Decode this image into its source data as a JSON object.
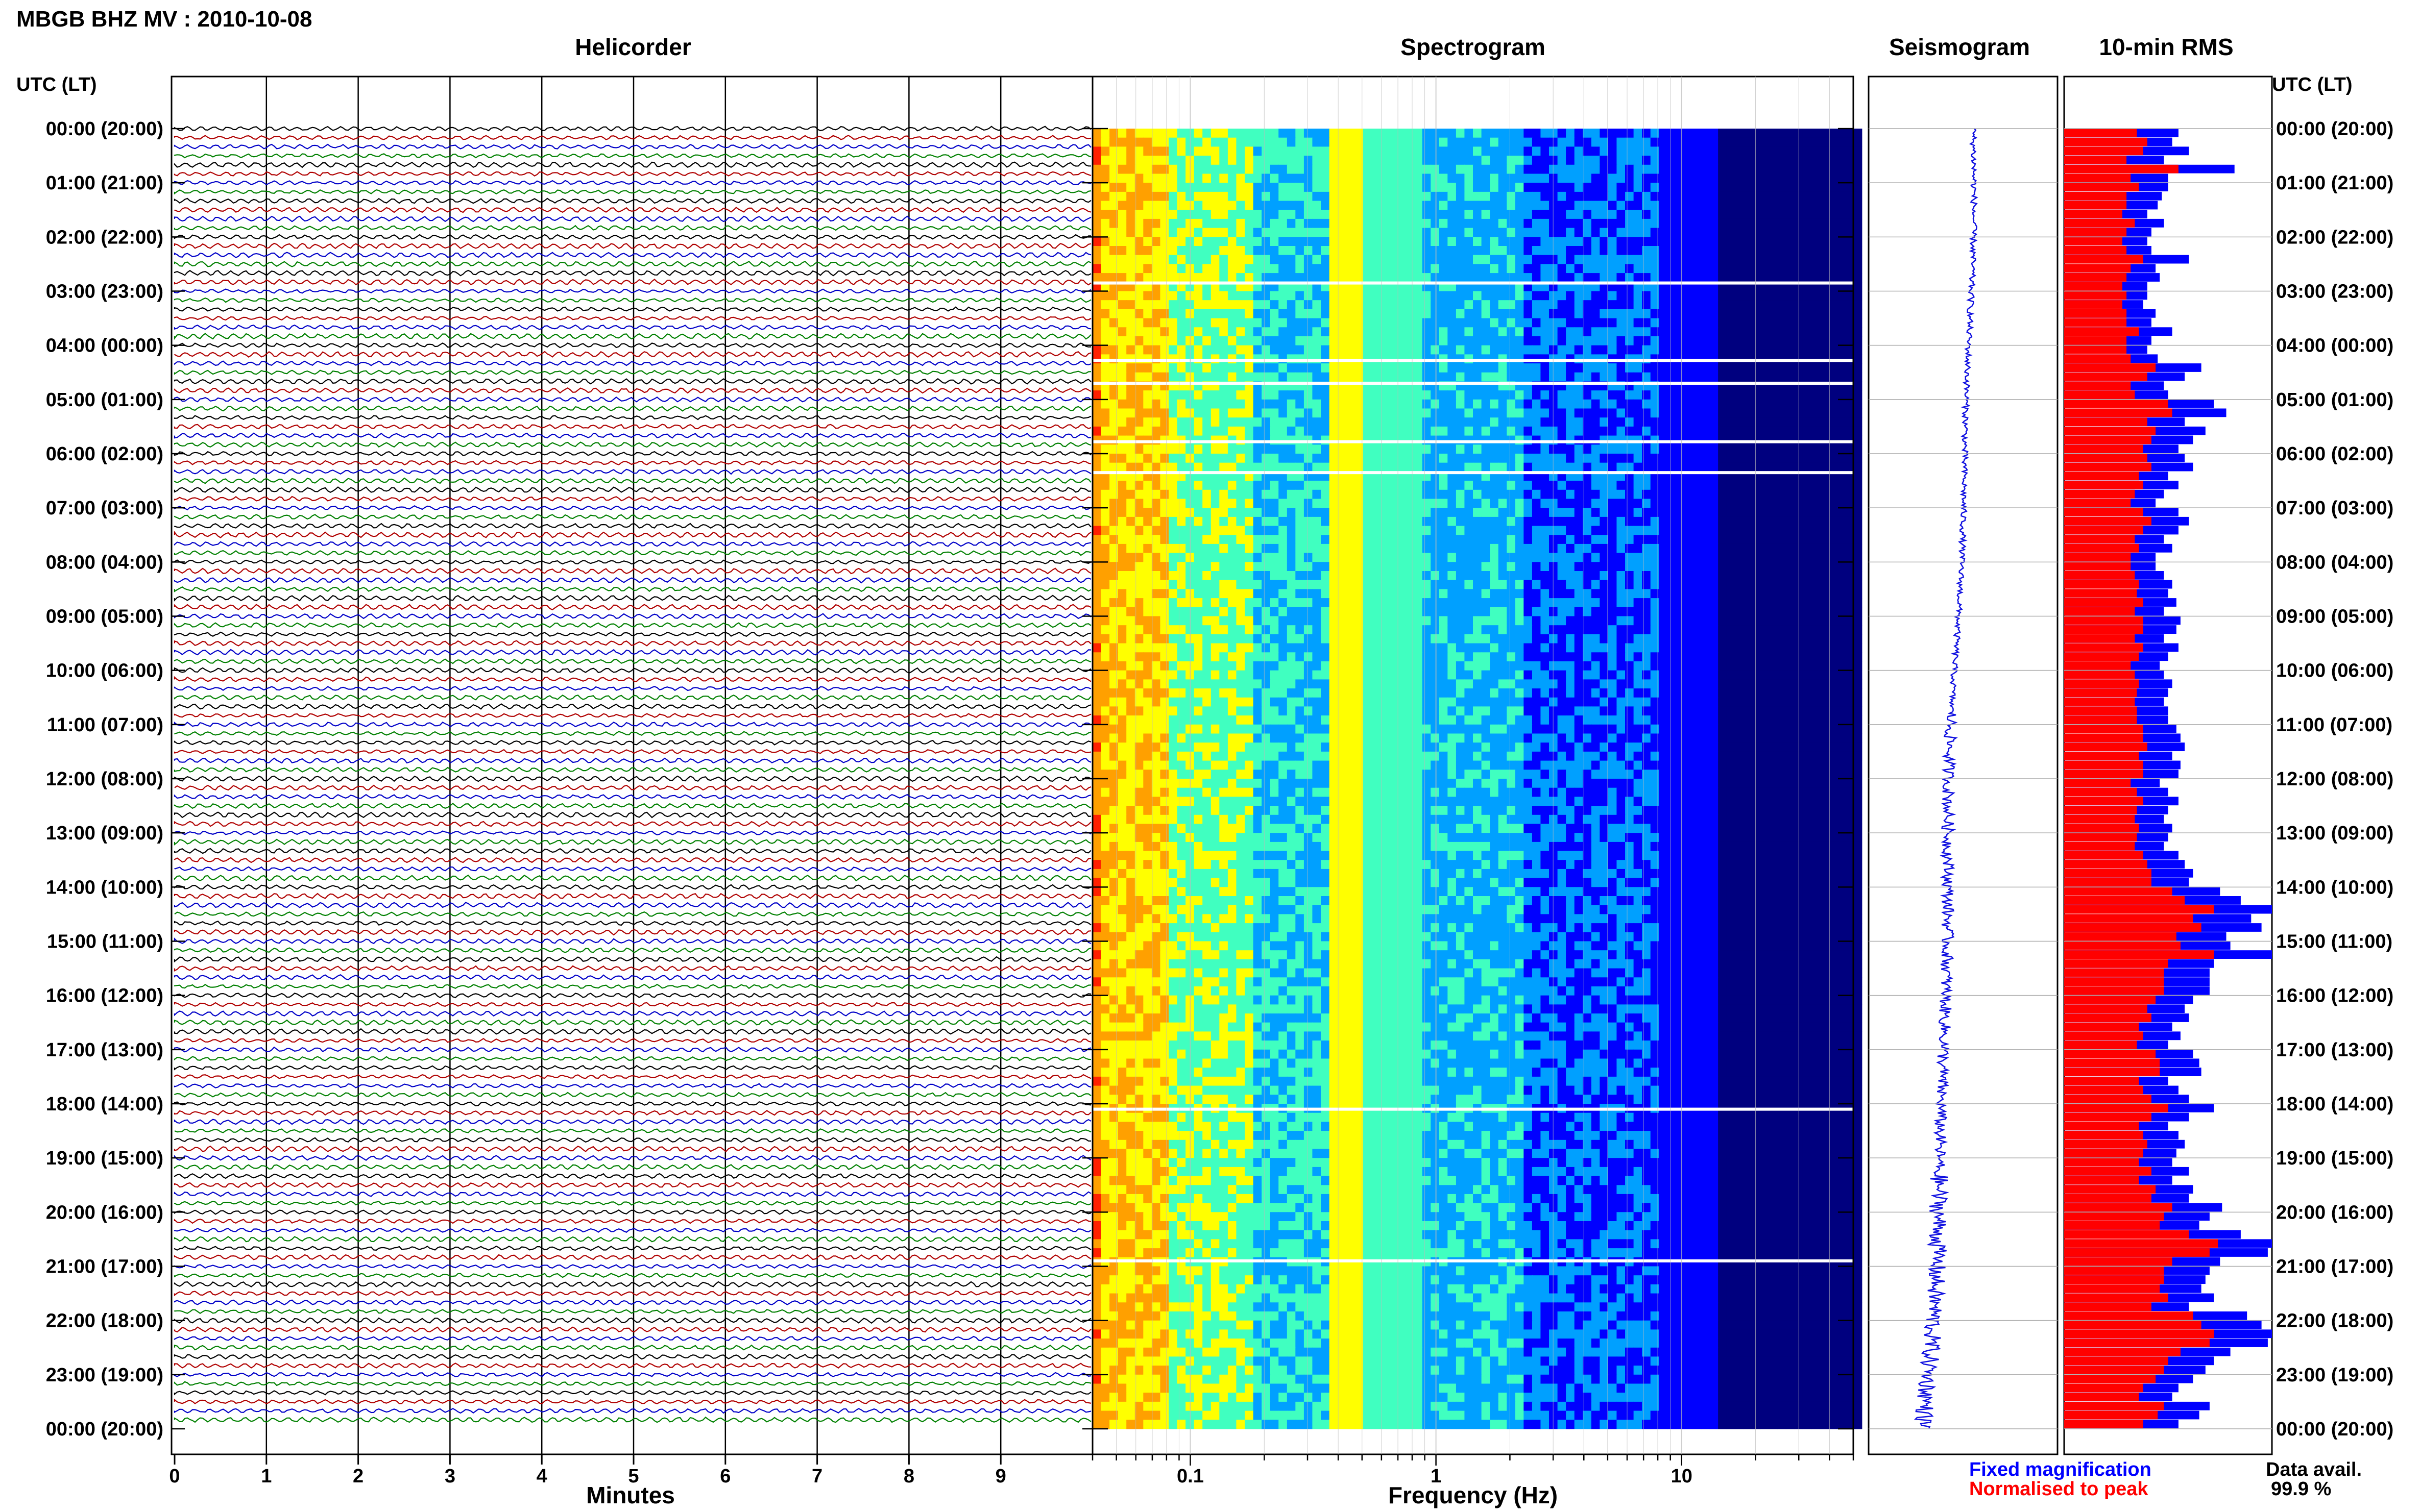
{
  "header": {
    "title": "MBGB BHZ MV : 2010-10-08",
    "utc_label_left": "UTC (LT)",
    "utc_label_right": "UTC (LT)"
  },
  "panels": {
    "helicorder": "Helicorder",
    "spectrogram": "Spectrogram",
    "seismogram": "Seismogram",
    "rms": "10-min RMS"
  },
  "time_labels": [
    "00:00 (20:00)",
    "01:00 (21:00)",
    "02:00 (22:00)",
    "03:00 (23:00)",
    "04:00 (00:00)",
    "05:00 (01:00)",
    "06:00 (02:00)",
    "07:00 (03:00)",
    "08:00 (04:00)",
    "09:00 (05:00)",
    "10:00 (06:00)",
    "11:00 (07:00)",
    "12:00 (08:00)",
    "13:00 (09:00)",
    "14:00 (10:00)",
    "15:00 (11:00)",
    "16:00 (12:00)",
    "17:00 (13:00)",
    "18:00 (14:00)",
    "19:00 (15:00)",
    "20:00 (16:00)",
    "21:00 (17:00)",
    "22:00 (18:00)",
    "23:00 (19:00)",
    "00:00 (20:00)"
  ],
  "footer": {
    "minutes_label": "Minutes",
    "frequency_label": "Frequency (Hz)",
    "legend_fixed": "Fixed magnification",
    "legend_normalised": "Normalised to peak",
    "data_avail_label": "Data avail.",
    "data_avail_value": "99.9 %"
  },
  "colors": {
    "trace_black": "#000000",
    "trace_red": "#b00000",
    "trace_blue": "#0000c8",
    "trace_green": "#008000",
    "rms_fixed": "#0000ff",
    "rms_normalised": "#ff0000",
    "seismo_trace": "#1010e0"
  },
  "chart_data": [
    {
      "type": "line",
      "panel": "helicorder",
      "xlabel": "Minutes",
      "x_ticks": [
        "0",
        "1",
        "2",
        "3",
        "4",
        "5",
        "6",
        "7",
        "8",
        "9"
      ],
      "xlim": [
        0,
        10
      ],
      "rows": 144,
      "row_interval_minutes": 10,
      "trace_color_cycle": [
        "#000000",
        "#b00000",
        "#0000c8",
        "#008000"
      ]
    },
    {
      "type": "heatmap",
      "panel": "spectrogram",
      "xlabel": "Frequency (Hz)",
      "x_scale": "log",
      "x_ticks": [
        "0.1",
        "1",
        "10"
      ],
      "xlim": [
        0.04,
        50
      ],
      "colormap": [
        "#00007f",
        "#0000ff",
        "#00a0ff",
        "#40ffc0",
        "#ffff00",
        "#ffa000",
        "#ff2000"
      ],
      "gap_rows_utc_hours": [
        2.85,
        4.28,
        4.7,
        5.78,
        6.35,
        18.1,
        20.9
      ]
    },
    {
      "type": "line",
      "panel": "seismogram",
      "note_unit": "relative amplitude"
    },
    {
      "type": "bar",
      "panel": "10-min RMS",
      "series": [
        {
          "name": "Fixed magnification",
          "values": [
            0.55,
            0.52,
            0.6,
            0.48,
            0.82,
            0.5,
            0.5,
            0.47,
            0.45,
            0.4,
            0.48,
            0.42,
            0.4,
            0.42,
            0.6,
            0.44,
            0.46,
            0.4,
            0.4,
            0.38,
            0.44,
            0.42,
            0.52,
            0.42,
            0.4,
            0.45,
            0.66,
            0.58,
            0.48,
            0.5,
            0.72,
            0.78,
            0.58,
            0.68,
            0.62,
            0.55,
            0.58,
            0.62,
            0.5,
            0.55,
            0.48,
            0.44,
            0.55,
            0.6,
            0.55,
            0.48,
            0.52,
            0.44,
            0.44,
            0.48,
            0.52,
            0.5,
            0.54,
            0.48,
            0.56,
            0.54,
            0.48,
            0.55,
            0.5,
            0.46,
            0.48,
            0.52,
            0.5,
            0.48,
            0.5,
            0.5,
            0.54,
            0.56,
            0.58,
            0.52,
            0.56,
            0.55,
            0.46,
            0.5,
            0.55,
            0.5,
            0.48,
            0.52,
            0.5,
            0.48,
            0.55,
            0.58,
            0.62,
            0.6,
            0.75,
            0.85,
            1.0,
            0.9,
            0.95,
            0.78,
            0.8,
            1.0,
            0.72,
            0.7,
            0.7,
            0.7,
            0.62,
            0.58,
            0.6,
            0.52,
            0.56,
            0.5,
            0.62,
            0.65,
            0.66,
            0.5,
            0.55,
            0.6,
            0.72,
            0.6,
            0.5,
            0.55,
            0.58,
            0.54,
            0.52,
            0.6,
            0.52,
            0.62,
            0.6,
            0.76,
            0.7,
            0.65,
            0.85,
            1.0,
            0.98,
            0.75,
            0.7,
            0.68,
            0.66,
            0.72,
            0.6,
            0.88,
            0.95,
            1.0,
            0.98,
            0.8,
            0.72,
            0.68,
            0.62,
            0.55,
            0.52,
            0.7,
            0.65,
            0.55
          ]
        },
        {
          "name": "Normalised to peak",
          "values": [
            0.35,
            0.4,
            0.38,
            0.3,
            0.55,
            0.32,
            0.36,
            0.3,
            0.3,
            0.28,
            0.34,
            0.3,
            0.28,
            0.3,
            0.38,
            0.32,
            0.3,
            0.28,
            0.3,
            0.28,
            0.3,
            0.3,
            0.36,
            0.3,
            0.3,
            0.32,
            0.44,
            0.4,
            0.32,
            0.34,
            0.5,
            0.52,
            0.4,
            0.44,
            0.42,
            0.38,
            0.4,
            0.42,
            0.36,
            0.38,
            0.34,
            0.32,
            0.38,
            0.42,
            0.38,
            0.34,
            0.36,
            0.32,
            0.32,
            0.34,
            0.36,
            0.35,
            0.38,
            0.34,
            0.38,
            0.38,
            0.34,
            0.38,
            0.36,
            0.32,
            0.34,
            0.36,
            0.35,
            0.34,
            0.35,
            0.35,
            0.38,
            0.38,
            0.4,
            0.36,
            0.38,
            0.38,
            0.32,
            0.35,
            0.38,
            0.35,
            0.34,
            0.36,
            0.35,
            0.34,
            0.38,
            0.4,
            0.42,
            0.42,
            0.52,
            0.58,
            0.72,
            0.62,
            0.66,
            0.54,
            0.56,
            0.72,
            0.5,
            0.48,
            0.48,
            0.48,
            0.44,
            0.4,
            0.42,
            0.36,
            0.38,
            0.35,
            0.44,
            0.46,
            0.46,
            0.36,
            0.38,
            0.42,
            0.5,
            0.42,
            0.36,
            0.38,
            0.4,
            0.38,
            0.36,
            0.42,
            0.36,
            0.44,
            0.42,
            0.52,
            0.48,
            0.46,
            0.6,
            0.74,
            0.7,
            0.52,
            0.48,
            0.48,
            0.46,
            0.5,
            0.42,
            0.62,
            0.66,
            0.72,
            0.7,
            0.56,
            0.5,
            0.48,
            0.44,
            0.38,
            0.36,
            0.48,
            0.45,
            0.38
          ]
        }
      ]
    }
  ]
}
